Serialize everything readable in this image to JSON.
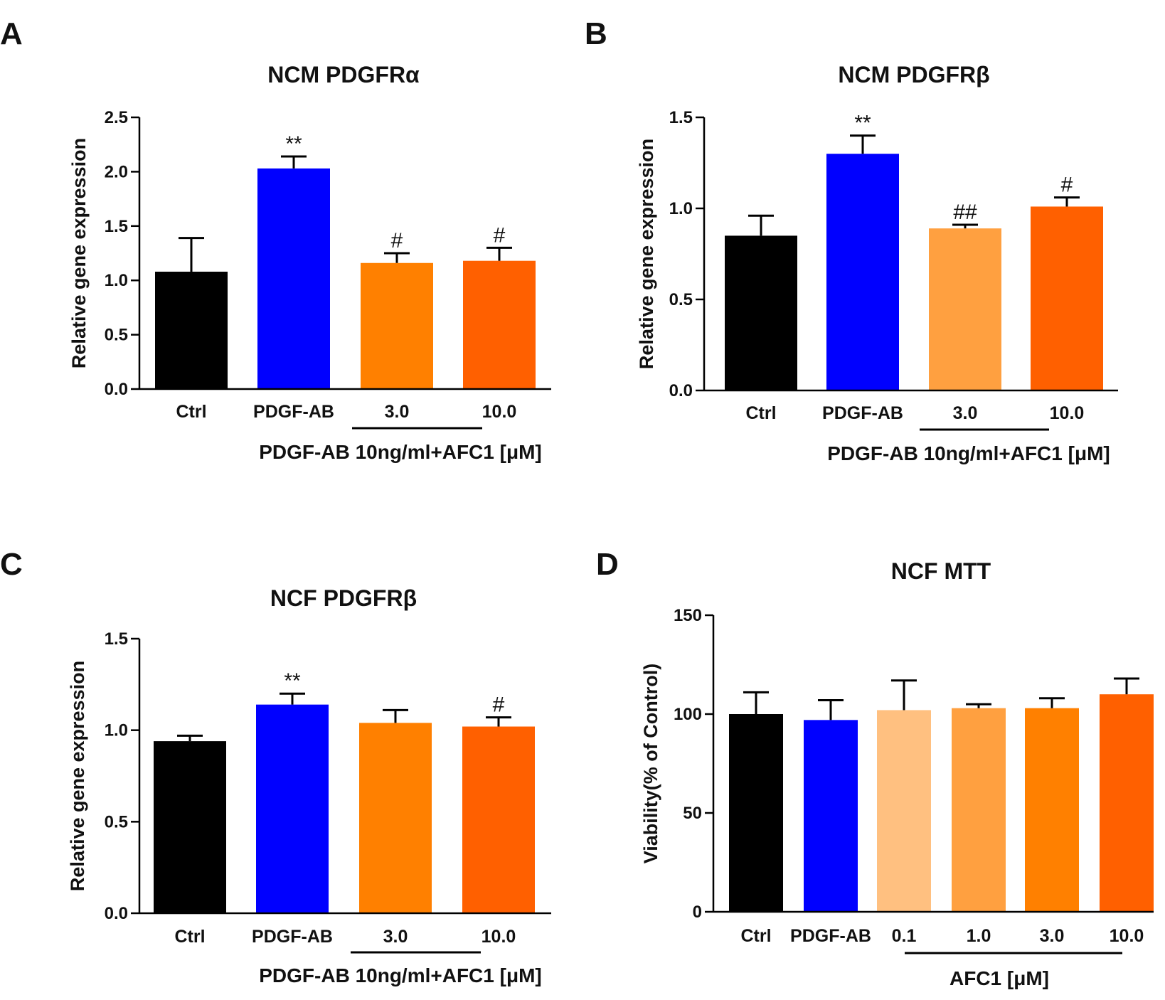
{
  "chart_data": [
    {
      "panel": "A",
      "type": "bar",
      "title": "NCM PDGFRα",
      "ylabel": "Relative gene expression",
      "xlabel": "",
      "ylim": [
        0,
        2.5
      ],
      "yticks": [
        0.0,
        0.5,
        1.0,
        1.5,
        2.0,
        2.5
      ],
      "ytick_labels": [
        "0.0",
        "0.5",
        "1.0",
        "1.5",
        "2.0",
        "2.5"
      ],
      "categories": [
        "Ctrl",
        "PDGF-AB",
        "3.0",
        "10.0"
      ],
      "values": [
        1.08,
        2.03,
        1.16,
        1.18
      ],
      "errors": [
        0.31,
        0.11,
        0.09,
        0.12
      ],
      "colors": [
        "#000000",
        "#0000ff",
        "#ff8000",
        "#ff6000"
      ],
      "annotations": [
        "",
        "**",
        "#",
        "#"
      ],
      "group_label": "PDGF-AB 10ng/ml+AFC1 [μM]",
      "grouped_categories": [
        2,
        3
      ]
    },
    {
      "panel": "B",
      "type": "bar",
      "title": "NCM PDGFRβ",
      "ylabel": "Relative gene expression",
      "xlabel": "",
      "ylim": [
        0,
        1.5
      ],
      "yticks": [
        0.0,
        0.5,
        1.0,
        1.5
      ],
      "ytick_labels": [
        "0.0",
        "0.5",
        "1.0",
        "1.5"
      ],
      "categories": [
        "Ctrl",
        "PDGF-AB",
        "3.0",
        "10.0"
      ],
      "values": [
        0.85,
        1.3,
        0.89,
        1.01
      ],
      "errors": [
        0.11,
        0.1,
        0.02,
        0.05
      ],
      "colors": [
        "#000000",
        "#0000ff",
        "#ffa040",
        "#ff6000"
      ],
      "annotations": [
        "",
        "**",
        "##",
        "#"
      ],
      "group_label": "PDGF-AB 10ng/ml+AFC1 [μM]",
      "grouped_categories": [
        2,
        3
      ]
    },
    {
      "panel": "C",
      "type": "bar",
      "title": "NCF PDGFRβ",
      "ylabel": "Relative gene expression",
      "xlabel": "",
      "ylim": [
        0,
        1.5
      ],
      "yticks": [
        0.0,
        0.5,
        1.0,
        1.5
      ],
      "ytick_labels": [
        "0.0",
        "0.5",
        "1.0",
        "1.5"
      ],
      "categories": [
        "Ctrl",
        "PDGF-AB",
        "3.0",
        "10.0"
      ],
      "values": [
        0.94,
        1.14,
        1.04,
        1.02
      ],
      "errors": [
        0.03,
        0.06,
        0.07,
        0.05
      ],
      "colors": [
        "#000000",
        "#0000ff",
        "#ff8000",
        "#ff6000"
      ],
      "annotations": [
        "",
        "**",
        "",
        "#"
      ],
      "group_label": "PDGF-AB 10ng/ml+AFC1 [μM]",
      "grouped_categories": [
        2,
        3
      ]
    },
    {
      "panel": "D",
      "type": "bar",
      "title": "NCF  MTT",
      "ylabel": "Viability(% of Control)",
      "xlabel": "",
      "ylim": [
        0,
        150
      ],
      "yticks": [
        0,
        50,
        100,
        150
      ],
      "ytick_labels": [
        "0",
        "50",
        "100",
        "150"
      ],
      "categories": [
        "Ctrl",
        "PDGF-AB",
        "0.1",
        "1.0",
        "3.0",
        "10.0"
      ],
      "values": [
        100,
        97,
        102,
        103,
        103,
        110
      ],
      "errors": [
        11,
        10,
        15,
        2,
        5,
        8
      ],
      "colors": [
        "#000000",
        "#0000ff",
        "#ffc080",
        "#ffa040",
        "#ff8000",
        "#ff6000"
      ],
      "annotations": [
        "",
        "",
        "",
        "",
        "",
        ""
      ],
      "group_label": "AFC1 [μM]",
      "grouped_categories": [
        2,
        5
      ]
    }
  ]
}
